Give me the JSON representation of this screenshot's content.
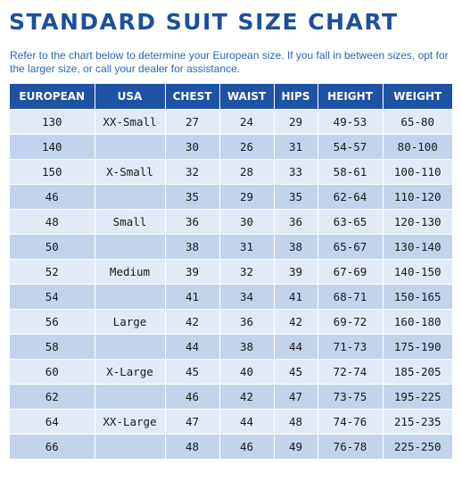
{
  "title": "STANDARD SUIT SIZE CHART",
  "intro": "Refer to the chart below to determine your European size. If you fall in between sizes, opt for the larger size, or call your dealer for assistance.",
  "table": {
    "headers": [
      "EUROPEAN",
      "USA",
      "CHEST",
      "WAIST",
      "HIPS",
      "HEIGHT",
      "WEIGHT"
    ],
    "rows": [
      [
        "130",
        "XX-Small",
        "27",
        "24",
        "29",
        "49-53",
        "65-80"
      ],
      [
        "140",
        "",
        "30",
        "26",
        "31",
        "54-57",
        "80-100"
      ],
      [
        "150",
        "X-Small",
        "32",
        "28",
        "33",
        "58-61",
        "100-110"
      ],
      [
        "46",
        "",
        "35",
        "29",
        "35",
        "62-64",
        "110-120"
      ],
      [
        "48",
        "Small",
        "36",
        "30",
        "36",
        "63-65",
        "120-130"
      ],
      [
        "50",
        "",
        "38",
        "31",
        "38",
        "65-67",
        "130-140"
      ],
      [
        "52",
        "Medium",
        "39",
        "32",
        "39",
        "67-69",
        "140-150"
      ],
      [
        "54",
        "",
        "41",
        "34",
        "41",
        "68-71",
        "150-165"
      ],
      [
        "56",
        "Large",
        "42",
        "36",
        "42",
        "69-72",
        "160-180"
      ],
      [
        "58",
        "",
        "44",
        "38",
        "44",
        "71-73",
        "175-190"
      ],
      [
        "60",
        "X-Large",
        "45",
        "40",
        "45",
        "72-74",
        "185-205"
      ],
      [
        "62",
        "",
        "46",
        "42",
        "47",
        "73-75",
        "195-225"
      ],
      [
        "64",
        "XX-Large",
        "47",
        "44",
        "48",
        "74-76",
        "215-235"
      ],
      [
        "66",
        "",
        "48",
        "46",
        "49",
        "76-78",
        "225-250"
      ]
    ]
  },
  "colors": {
    "title": "#1d4f9c",
    "header_bg": "#2052a3",
    "row_light": "#e2eaf6",
    "row_dark": "#c3d3ec"
  }
}
